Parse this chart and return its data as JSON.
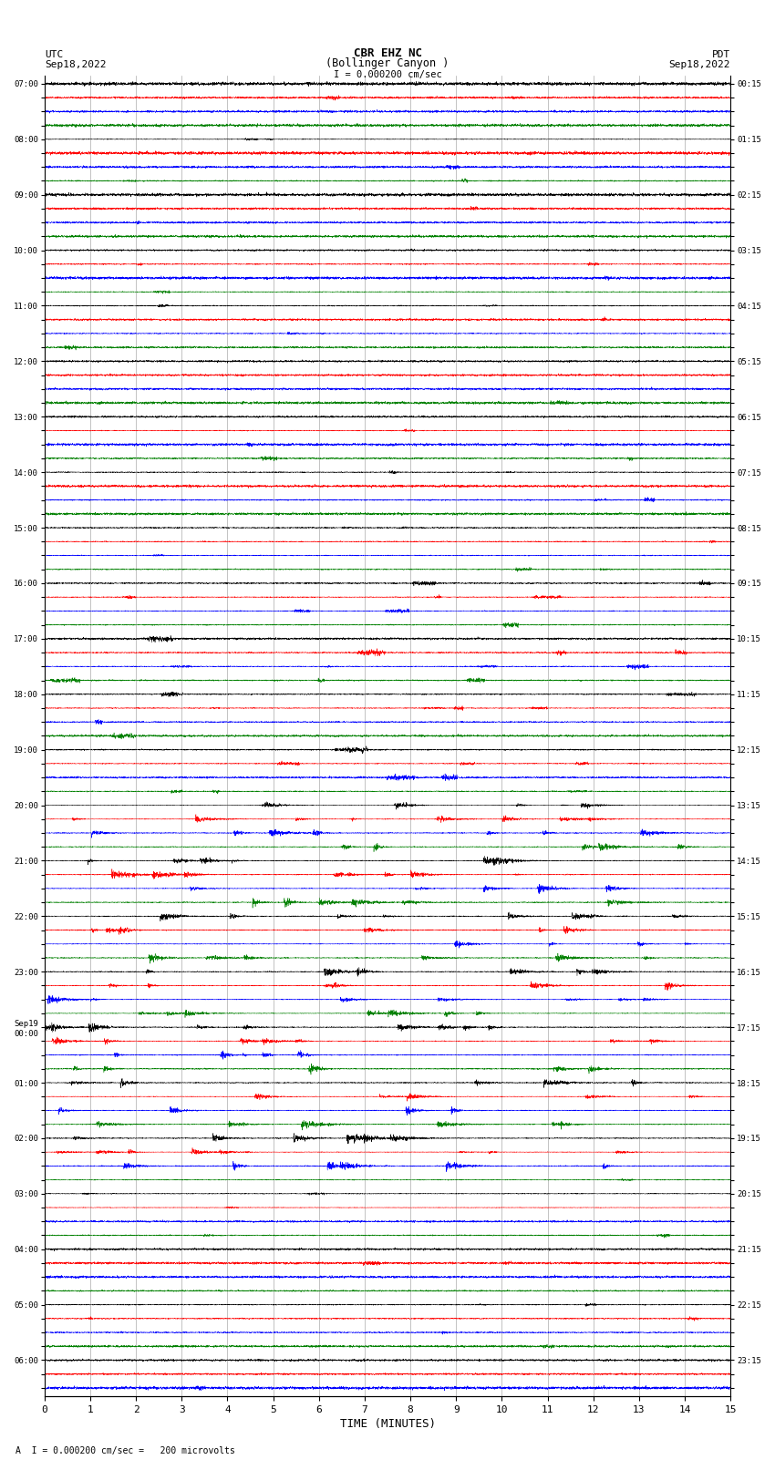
{
  "title_line1": "CBR EHZ NC",
  "title_line2": "(Bollinger Canyon )",
  "scale_label": "I = 0.000200 cm/sec",
  "left_label_top": "UTC",
  "left_label_date": "Sep18,2022",
  "right_label_top": "PDT",
  "right_label_date": "Sep18,2022",
  "bottom_label": "TIME (MINUTES)",
  "bottom_note": "A  I = 0.000200 cm/sec =   200 microvolts",
  "xlabel_ticks": [
    0,
    1,
    2,
    3,
    4,
    5,
    6,
    7,
    8,
    9,
    10,
    11,
    12,
    13,
    14,
    15
  ],
  "left_time_labels": [
    "07:00",
    "",
    "",
    "",
    "08:00",
    "",
    "",
    "",
    "09:00",
    "",
    "",
    "",
    "10:00",
    "",
    "",
    "",
    "11:00",
    "",
    "",
    "",
    "12:00",
    "",
    "",
    "",
    "13:00",
    "",
    "",
    "",
    "14:00",
    "",
    "",
    "",
    "15:00",
    "",
    "",
    "",
    "16:00",
    "",
    "",
    "",
    "17:00",
    "",
    "",
    "",
    "18:00",
    "",
    "",
    "",
    "19:00",
    "",
    "",
    "",
    "20:00",
    "",
    "",
    "",
    "21:00",
    "",
    "",
    "",
    "22:00",
    "",
    "",
    "",
    "23:00",
    "",
    "",
    "",
    "Sep19\n00:00",
    "",
    "",
    "",
    "01:00",
    "",
    "",
    "",
    "02:00",
    "",
    "",
    "",
    "03:00",
    "",
    "",
    "",
    "04:00",
    "",
    "",
    "",
    "05:00",
    "",
    "",
    "",
    "06:00",
    "",
    ""
  ],
  "right_time_labels": [
    "00:15",
    "",
    "",
    "",
    "01:15",
    "",
    "",
    "",
    "02:15",
    "",
    "",
    "",
    "03:15",
    "",
    "",
    "",
    "04:15",
    "",
    "",
    "",
    "05:15",
    "",
    "",
    "",
    "06:15",
    "",
    "",
    "",
    "07:15",
    "",
    "",
    "",
    "08:15",
    "",
    "",
    "",
    "09:15",
    "",
    "",
    "",
    "10:15",
    "",
    "",
    "",
    "11:15",
    "",
    "",
    "",
    "12:15",
    "",
    "",
    "",
    "13:15",
    "",
    "",
    "",
    "14:15",
    "",
    "",
    "",
    "15:15",
    "",
    "",
    "",
    "16:15",
    "",
    "",
    "",
    "17:15",
    "",
    "",
    "",
    "18:15",
    "",
    "",
    "",
    "19:15",
    "",
    "",
    "",
    "20:15",
    "",
    "",
    "",
    "21:15",
    "",
    "",
    "",
    "22:15",
    "",
    "",
    "",
    "23:15",
    "",
    ""
  ],
  "colors": [
    "black",
    "red",
    "blue",
    "green"
  ],
  "n_rows": 95,
  "bg_color": "white",
  "grid_color": "#888888",
  "trace_amplitude": 0.42,
  "fig_width": 8.5,
  "fig_height": 16.13,
  "dpi": 100,
  "high_activity_rows": [
    52,
    53,
    54,
    55,
    56,
    57,
    58,
    59,
    60,
    61,
    62,
    63,
    64,
    65,
    66,
    67,
    68,
    69,
    70,
    71,
    72,
    73,
    74,
    75,
    76,
    77,
    78
  ],
  "medium_activity_rows": [
    36,
    37,
    38,
    39,
    40,
    41,
    42,
    43,
    44,
    45,
    46,
    47,
    48,
    49,
    50,
    51
  ]
}
